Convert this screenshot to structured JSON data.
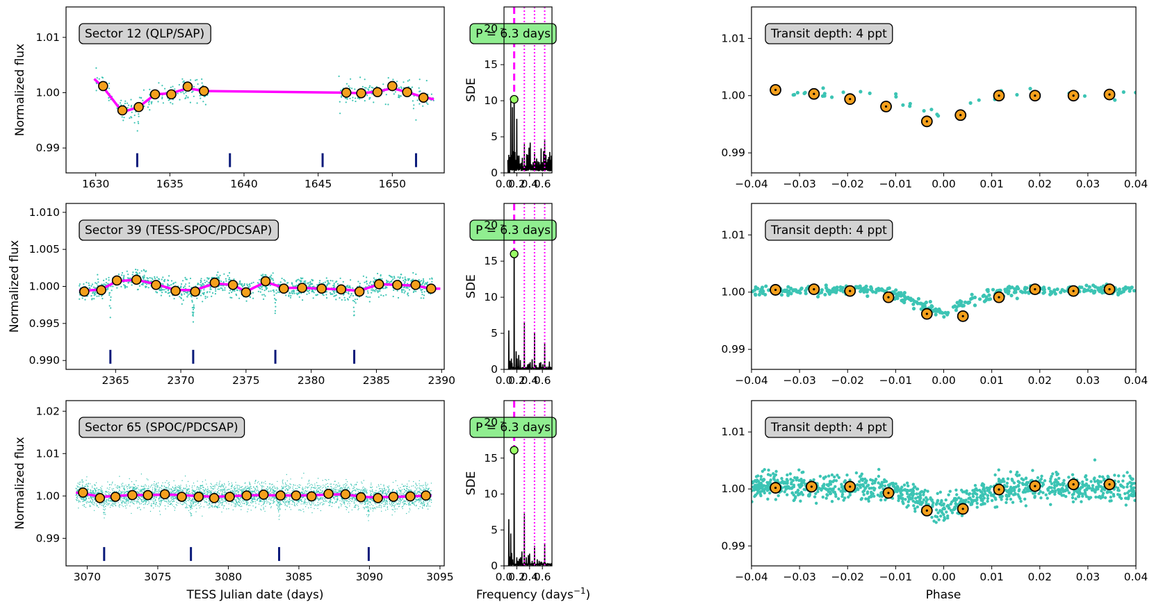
{
  "figure": {
    "xlabel_time": "TESS Julian date (days)",
    "xlabel_freq": "Frequency (days",
    "xlabel_freq_sup": "−1",
    "xlabel_freq_close": ")",
    "xlabel_phase": "Phase",
    "ylabel_flux": "Normalized flux",
    "ylabel_sde": "SDE",
    "colors": {
      "points": "#3cc4b4",
      "binned_fill": "#f5a01c",
      "model": "#ff00ff",
      "period_marker": "#0a1a7a",
      "period_box": "#90ee90",
      "label_box": "#d3d3d3",
      "bls_peak": "#99ff66"
    }
  },
  "chart_data": [
    {
      "type": "scatter",
      "panel": "light-curve",
      "sector_label": "Sector 12 (QLP/SAP)",
      "xlim": [
        1628,
        1653.5
      ],
      "ylim": [
        0.9855,
        1.0155
      ],
      "xticks": [
        1630,
        1635,
        1640,
        1645,
        1650
      ],
      "yticks": [
        0.99,
        1.0,
        1.01
      ],
      "ytick_labels": [
        "0.99",
        "1.00",
        "1.01"
      ],
      "segments": [
        [
          1630,
          1637.6
        ],
        [
          1646.4,
          1652.8
        ]
      ],
      "point_density": 110,
      "point_scatter": 0.0018,
      "binned": {
        "x": [
          1630.5,
          1631.8,
          1632.9,
          1634,
          1635.1,
          1636.2,
          1637.3,
          1646.9,
          1647.9,
          1649,
          1650,
          1651,
          1652.1
        ],
        "y": [
          1.0012,
          0.9968,
          0.9974,
          0.9997,
          0.9997,
          1.0011,
          1.0003,
          1.0,
          0.9999,
          1.0001,
          1.0012,
          1.0001,
          0.9991
        ]
      },
      "model_line": {
        "x": [
          1629.9,
          1630.5,
          1631.8,
          1632.9,
          1634,
          1635.1,
          1636.2,
          1637.3,
          1646.9,
          1647.9,
          1649,
          1650,
          1651,
          1652.1,
          1652.8
        ],
        "y": [
          1.0025,
          1.001,
          0.9965,
          0.9974,
          0.9997,
          0.9999,
          1.0008,
          1.0003,
          1.0,
          0.9999,
          1.0002,
          1.0008,
          1.0001,
          0.9992,
          0.9988
        ]
      },
      "transit_times": [
        1632.8,
        1639.05,
        1645.3,
        1651.6
      ],
      "transit_marker_y": 0.9878
    },
    {
      "type": "line",
      "panel": "periodogram",
      "period_label": "P = 6.3 days",
      "xlim": [
        0,
        0.75
      ],
      "ylim": [
        0,
        23
      ],
      "xticks": [
        0.0,
        0.2,
        0.4,
        0.6
      ],
      "xtick_labels": [
        "0.0",
        "0.2",
        "0.4",
        "0.6"
      ],
      "yticks": [
        0,
        5,
        10,
        15,
        20
      ],
      "peak": {
        "frequency": 0.159,
        "sde": 10.2
      },
      "harmonics": [
        0.318,
        0.477,
        0.636
      ],
      "spikes": [
        [
          0.06,
          1.8
        ],
        [
          0.075,
          2.5
        ],
        [
          0.085,
          1.2
        ],
        [
          0.094,
          2.2
        ],
        [
          0.105,
          9.9
        ],
        [
          0.118,
          2.5
        ],
        [
          0.131,
          9.1
        ],
        [
          0.142,
          3.0
        ],
        [
          0.159,
          10.2
        ],
        [
          0.172,
          2.9
        ],
        [
          0.185,
          1.8
        ],
        [
          0.2,
          7.5
        ],
        [
          0.215,
          2.4
        ],
        [
          0.235,
          2.4
        ],
        [
          0.25,
          1.3
        ],
        [
          0.27,
          1.4
        ],
        [
          0.287,
          2.1
        ],
        [
          0.3,
          0.9
        ],
        [
          0.318,
          4.0
        ],
        [
          0.335,
          1.0
        ],
        [
          0.355,
          2.6
        ],
        [
          0.37,
          2.5
        ],
        [
          0.39,
          3.5
        ],
        [
          0.405,
          1.0
        ],
        [
          0.41,
          4.2
        ],
        [
          0.43,
          1.2
        ],
        [
          0.455,
          1.5
        ],
        [
          0.477,
          2.9
        ],
        [
          0.49,
          1.6
        ],
        [
          0.51,
          2.0
        ],
        [
          0.53,
          1.6
        ],
        [
          0.55,
          1.5
        ],
        [
          0.57,
          1.2
        ],
        [
          0.58,
          3.4
        ],
        [
          0.6,
          1.5
        ],
        [
          0.62,
          3.0
        ],
        [
          0.636,
          4.5
        ],
        [
          0.655,
          2.5
        ],
        [
          0.67,
          1.5
        ],
        [
          0.685,
          1.9
        ],
        [
          0.7,
          2.2
        ],
        [
          0.715,
          2.9
        ],
        [
          0.73,
          1.8
        ],
        [
          0.74,
          2.4
        ]
      ],
      "noise_floor": 0.9
    },
    {
      "type": "scatter",
      "panel": "phase-fold",
      "depth_label": "Transit depth: 4 ppt",
      "xlim": [
        -0.04,
        0.04
      ],
      "ylim": [
        0.9865,
        1.0155
      ],
      "xticks": [
        -0.04,
        -0.03,
        -0.02,
        -0.01,
        0.0,
        0.01,
        0.02,
        0.03,
        0.04
      ],
      "xtick_labels": [
        "−0.04",
        "−0.03",
        "−0.02",
        "−0.01",
        "0.00",
        "0.01",
        "0.02",
        "0.03",
        "0.04"
      ],
      "yticks": [
        0.99,
        1.0,
        1.01
      ],
      "ytick_labels": [
        "0.99",
        "1.00",
        "1.01"
      ],
      "point_count": 40,
      "point_scatter": 0.0006,
      "binned": {
        "x": [
          -0.035,
          -0.027,
          -0.0195,
          -0.012,
          -0.0035,
          0.0035,
          0.0115,
          0.019,
          0.027,
          0.0345
        ],
        "y": [
          1.001,
          1.0003,
          0.9994,
          0.9981,
          0.9955,
          0.9966,
          1.0,
          1.0,
          1.0,
          1.0002
        ]
      }
    },
    {
      "type": "scatter",
      "panel": "light-curve",
      "sector_label": "Sector 39 (TESS-SPOC/PDCSAP)",
      "xlim": [
        2361.2,
        2390.2
      ],
      "ylim": [
        0.9888,
        1.0112
      ],
      "xticks": [
        2365,
        2370,
        2375,
        2380,
        2385,
        2390
      ],
      "yticks": [
        0.99,
        0.995,
        1.0,
        1.005,
        1.01
      ],
      "ytick_labels": [
        "0.990",
        "0.995",
        "1.000",
        "1.005",
        "1.010"
      ],
      "segments": [
        [
          2362.2,
          2375.6
        ],
        [
          2375.9,
          2389.3
        ]
      ],
      "point_density": 250,
      "point_scatter": 0.0011,
      "binned": {
        "x": [
          2362.6,
          2363.9,
          2365.1,
          2366.6,
          2368.1,
          2369.6,
          2371.1,
          2372.6,
          2374.0,
          2375.0,
          2376.5,
          2377.9,
          2379.3,
          2380.8,
          2382.3,
          2383.7,
          2385.2,
          2386.6,
          2388.0,
          2389.2
        ],
        "y": [
          0.9993,
          0.9995,
          1.0008,
          1.0009,
          1.0002,
          0.9994,
          0.9993,
          1.0005,
          1.0002,
          0.9992,
          1.0007,
          0.9997,
          0.9998,
          0.9997,
          0.9996,
          0.9993,
          1.0003,
          1.0002,
          1.0002,
          0.9997
        ]
      },
      "model_line": {
        "x": [
          2362.2,
          2362.6,
          2363.9,
          2365.1,
          2366.6,
          2368.1,
          2369.6,
          2371.1,
          2372.6,
          2374.0,
          2375.0,
          2376.5,
          2377.9,
          2379.3,
          2380.8,
          2382.3,
          2383.7,
          2385.2,
          2386.6,
          2388.0,
          2389.2,
          2389.9
        ],
        "y": [
          0.9995,
          0.9994,
          0.9996,
          1.0007,
          1.0009,
          1.0003,
          0.9995,
          0.9995,
          1.0004,
          1.0002,
          0.9993,
          1.0006,
          0.9998,
          0.9998,
          0.9997,
          0.9996,
          0.9994,
          1.0003,
          1.0002,
          1.0001,
          0.9997,
          0.9997
        ]
      },
      "transit_times": [
        2364.6,
        2370.95,
        2377.25,
        2383.3
      ],
      "transit_marker_y": 0.9905
    },
    {
      "type": "line",
      "panel": "periodogram",
      "period_label": "P = 6.3 days",
      "xlim": [
        0,
        0.75
      ],
      "ylim": [
        0,
        23
      ],
      "xticks": [
        0.0,
        0.2,
        0.4,
        0.6
      ],
      "xtick_labels": [
        "0.0",
        "0.2",
        "0.4",
        "0.6"
      ],
      "yticks": [
        0,
        5,
        10,
        15,
        20
      ],
      "peak": {
        "frequency": 0.159,
        "sde": 16.0
      },
      "harmonics": [
        0.318,
        0.477,
        0.636
      ],
      "spikes": [
        [
          0.075,
          5.4
        ],
        [
          0.095,
          1.2
        ],
        [
          0.115,
          1.5
        ],
        [
          0.125,
          0.9
        ],
        [
          0.159,
          16.0
        ],
        [
          0.19,
          2.5
        ],
        [
          0.205,
          1.5
        ],
        [
          0.23,
          2.0
        ],
        [
          0.255,
          1.3
        ],
        [
          0.318,
          6.5
        ],
        [
          0.37,
          0.7
        ],
        [
          0.39,
          0.8
        ],
        [
          0.41,
          1.0
        ],
        [
          0.44,
          1.4
        ],
        [
          0.477,
          5.2
        ],
        [
          0.5,
          0.6
        ],
        [
          0.555,
          0.9
        ],
        [
          0.575,
          1.0
        ],
        [
          0.605,
          0.7
        ],
        [
          0.636,
          3.7
        ],
        [
          0.71,
          1.1
        ]
      ],
      "noise_floor": 0.25
    },
    {
      "type": "scatter",
      "panel": "phase-fold",
      "depth_label": "Transit depth: 4 ppt",
      "xlim": [
        -0.04,
        0.04
      ],
      "ylim": [
        0.9865,
        1.0155
      ],
      "xticks": [
        -0.04,
        -0.03,
        -0.02,
        -0.01,
        0.0,
        0.01,
        0.02,
        0.03,
        0.04
      ],
      "xtick_labels": [
        "−0.04",
        "−0.03",
        "−0.02",
        "−0.01",
        "0.00",
        "0.01",
        "0.02",
        "0.03",
        "0.04"
      ],
      "yticks": [
        0.99,
        1.0,
        1.01
      ],
      "ytick_labels": [
        "0.99",
        "1.00",
        "1.01"
      ],
      "point_count": 420,
      "point_scatter": 0.0006,
      "binned": {
        "x": [
          -0.035,
          -0.027,
          -0.0195,
          -0.0115,
          -0.0035,
          0.004,
          0.0115,
          0.019,
          0.027,
          0.0345
        ],
        "y": [
          1.0004,
          1.0005,
          1.0002,
          0.9991,
          0.9962,
          0.9958,
          0.9991,
          1.0005,
          1.0002,
          1.0005
        ]
      }
    },
    {
      "type": "scatter",
      "panel": "light-curve",
      "sector_label": "Sector 65 (SPOC/PDCSAP)",
      "xlim": [
        3068.5,
        3095.3
      ],
      "ylim": [
        0.9835,
        1.0225
      ],
      "xticks": [
        3070,
        3075,
        3080,
        3085,
        3090,
        3095
      ],
      "yticks": [
        0.99,
        1.0,
        1.01,
        1.02
      ],
      "ytick_labels": [
        "0.99",
        "1.00",
        "1.01",
        "1.02"
      ],
      "segments": [
        [
          3069.2,
          3094.4
        ]
      ],
      "point_density": 900,
      "point_scatter": 0.0023,
      "binned": {
        "x": [
          3069.7,
          3070.9,
          3072.0,
          3073.2,
          3074.3,
          3075.5,
          3076.7,
          3077.9,
          3079.0,
          3080.1,
          3081.3,
          3082.5,
          3083.7,
          3084.8,
          3085.9,
          3087.1,
          3088.3,
          3089.4,
          3090.6,
          3091.7,
          3092.9,
          3094.0
        ],
        "y": [
          1.0008,
          0.9995,
          0.9998,
          1.0002,
          1.0002,
          1.0004,
          0.9998,
          0.9998,
          0.9995,
          0.9998,
          1.0001,
          1.0003,
          1.0001,
          1.0001,
          0.9999,
          1.0005,
          1.0004,
          0.9997,
          0.9995,
          0.9998,
          0.9999,
          1.0001
        ]
      },
      "model_line": {
        "x": [
          3069.2,
          3070.0,
          3071.0,
          3073.0,
          3076.0,
          3079.0,
          3082.0,
          3085.0,
          3088.0,
          3090.0,
          3092.0,
          3094.4
        ],
        "y": [
          1.0008,
          1.0004,
          0.9998,
          1.0002,
          1.0003,
          0.9998,
          1.0002,
          1.0001,
          1.0004,
          0.9997,
          0.9998,
          1.0001
        ]
      },
      "transit_times": [
        3071.2,
        3077.35,
        3083.6,
        3089.95
      ],
      "transit_marker_y": 0.9863
    },
    {
      "type": "line",
      "panel": "periodogram",
      "period_label": "P = 6.3 days",
      "xlim": [
        0,
        0.75
      ],
      "ylim": [
        0,
        23
      ],
      "xticks": [
        0.0,
        0.2,
        0.4,
        0.6
      ],
      "xtick_labels": [
        "0.0",
        "0.2",
        "0.4",
        "0.6"
      ],
      "yticks": [
        0,
        5,
        10,
        15,
        20
      ],
      "peak": {
        "frequency": 0.159,
        "sde": 16.1
      },
      "harmonics": [
        0.318,
        0.477,
        0.636
      ],
      "spikes": [
        [
          0.075,
          6.5
        ],
        [
          0.09,
          1.3
        ],
        [
          0.105,
          4.5
        ],
        [
          0.12,
          1.8
        ],
        [
          0.135,
          0.9
        ],
        [
          0.159,
          16.1
        ],
        [
          0.2,
          1.2
        ],
        [
          0.22,
          0.7
        ],
        [
          0.24,
          1.0
        ],
        [
          0.26,
          1.2
        ],
        [
          0.28,
          2.0
        ],
        [
          0.318,
          7.3
        ],
        [
          0.35,
          1.2
        ],
        [
          0.38,
          1.5
        ],
        [
          0.4,
          1.7
        ],
        [
          0.44,
          0.7
        ],
        [
          0.477,
          2.8
        ],
        [
          0.52,
          0.9
        ],
        [
          0.55,
          0.7
        ],
        [
          0.58,
          0.6
        ],
        [
          0.636,
          3.0
        ],
        [
          0.68,
          0.4
        ]
      ],
      "noise_floor": 0.3
    },
    {
      "type": "scatter",
      "panel": "phase-fold",
      "depth_label": "Transit depth: 4 ppt",
      "xlim": [
        -0.04,
        0.04
      ],
      "ylim": [
        0.9865,
        1.0155
      ],
      "xticks": [
        -0.04,
        -0.03,
        -0.02,
        -0.01,
        0.0,
        0.01,
        0.02,
        0.03,
        0.04
      ],
      "xtick_labels": [
        "−0.04",
        "−0.03",
        "−0.02",
        "−0.01",
        "0.00",
        "0.01",
        "0.02",
        "0.03",
        "0.04"
      ],
      "yticks": [
        0.99,
        1.0,
        1.01
      ],
      "ytick_labels": [
        "0.99",
        "1.00",
        "1.01"
      ],
      "point_count": 1100,
      "point_scatter": 0.0016,
      "binned": {
        "x": [
          -0.035,
          -0.0275,
          -0.0195,
          -0.0115,
          -0.0035,
          0.004,
          0.0115,
          0.019,
          0.027,
          0.0345
        ],
        "y": [
          1.0002,
          1.0004,
          1.0004,
          0.9993,
          0.9962,
          0.9965,
          0.9999,
          1.0005,
          1.0008,
          1.0008
        ]
      }
    }
  ]
}
